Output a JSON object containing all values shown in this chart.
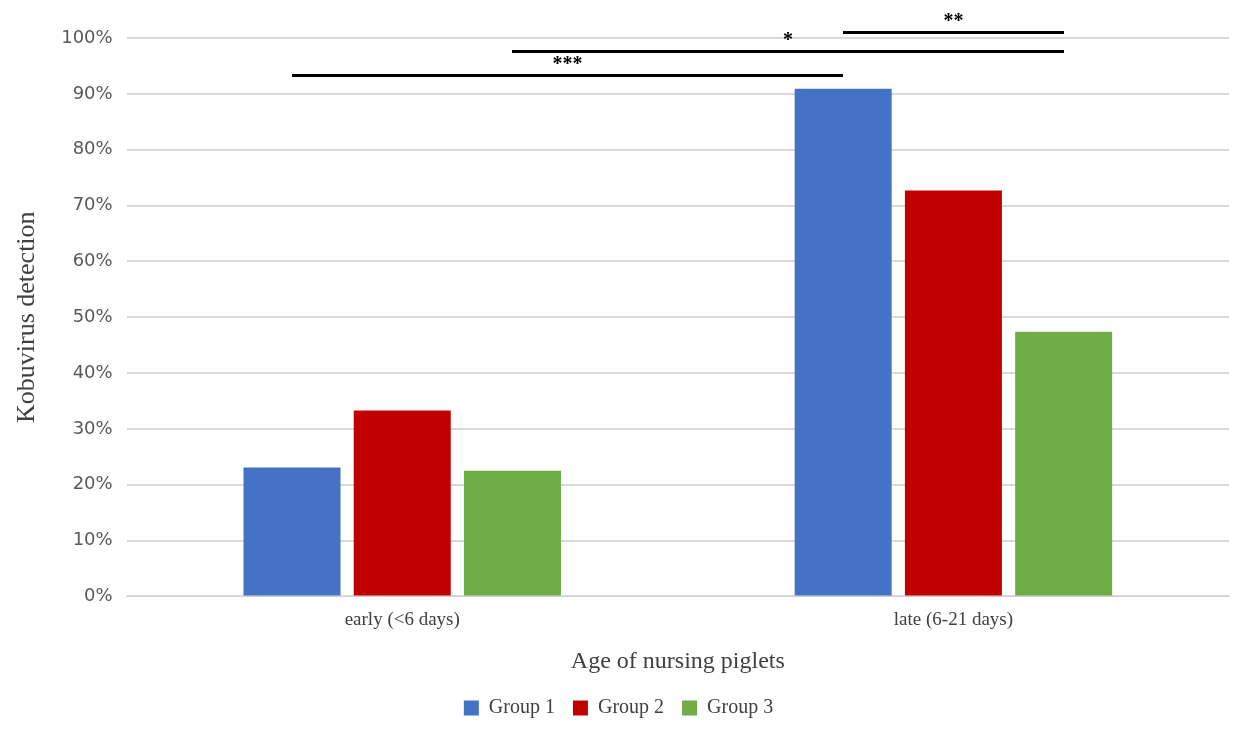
{
  "chart_data": {
    "type": "bar",
    "xlabel": "Age of nursing piglets",
    "ylabel": "Kobuvirus detection",
    "categories": [
      "early (<6 days)",
      "late (6-21 days)"
    ],
    "series": [
      {
        "name": "Group 1",
        "color": "#4472c4",
        "values": [
          23.1,
          90.9
        ]
      },
      {
        "name": "Group 2",
        "color": "#c00000",
        "values": [
          33.3,
          72.7
        ]
      },
      {
        "name": "Group 3",
        "color": "#70ad47",
        "values": [
          22.5,
          47.4
        ]
      }
    ],
    "ylim": [
      0,
      100
    ],
    "yticks": [
      {
        "value": 0,
        "label": "0%"
      },
      {
        "value": 10,
        "label": "10%"
      },
      {
        "value": 20,
        "label": "20%"
      },
      {
        "value": 30,
        "label": "30%"
      },
      {
        "value": 40,
        "label": "40%"
      },
      {
        "value": 50,
        "label": "50%"
      },
      {
        "value": 60,
        "label": "60%"
      },
      {
        "value": 70,
        "label": "70%"
      },
      {
        "value": 80,
        "label": "80%"
      },
      {
        "value": 90,
        "label": "90%"
      },
      {
        "value": 100,
        "label": "100%"
      }
    ],
    "grid": "y",
    "legend": "bottom",
    "annotations": [
      "***",
      "*",
      "**"
    ]
  }
}
